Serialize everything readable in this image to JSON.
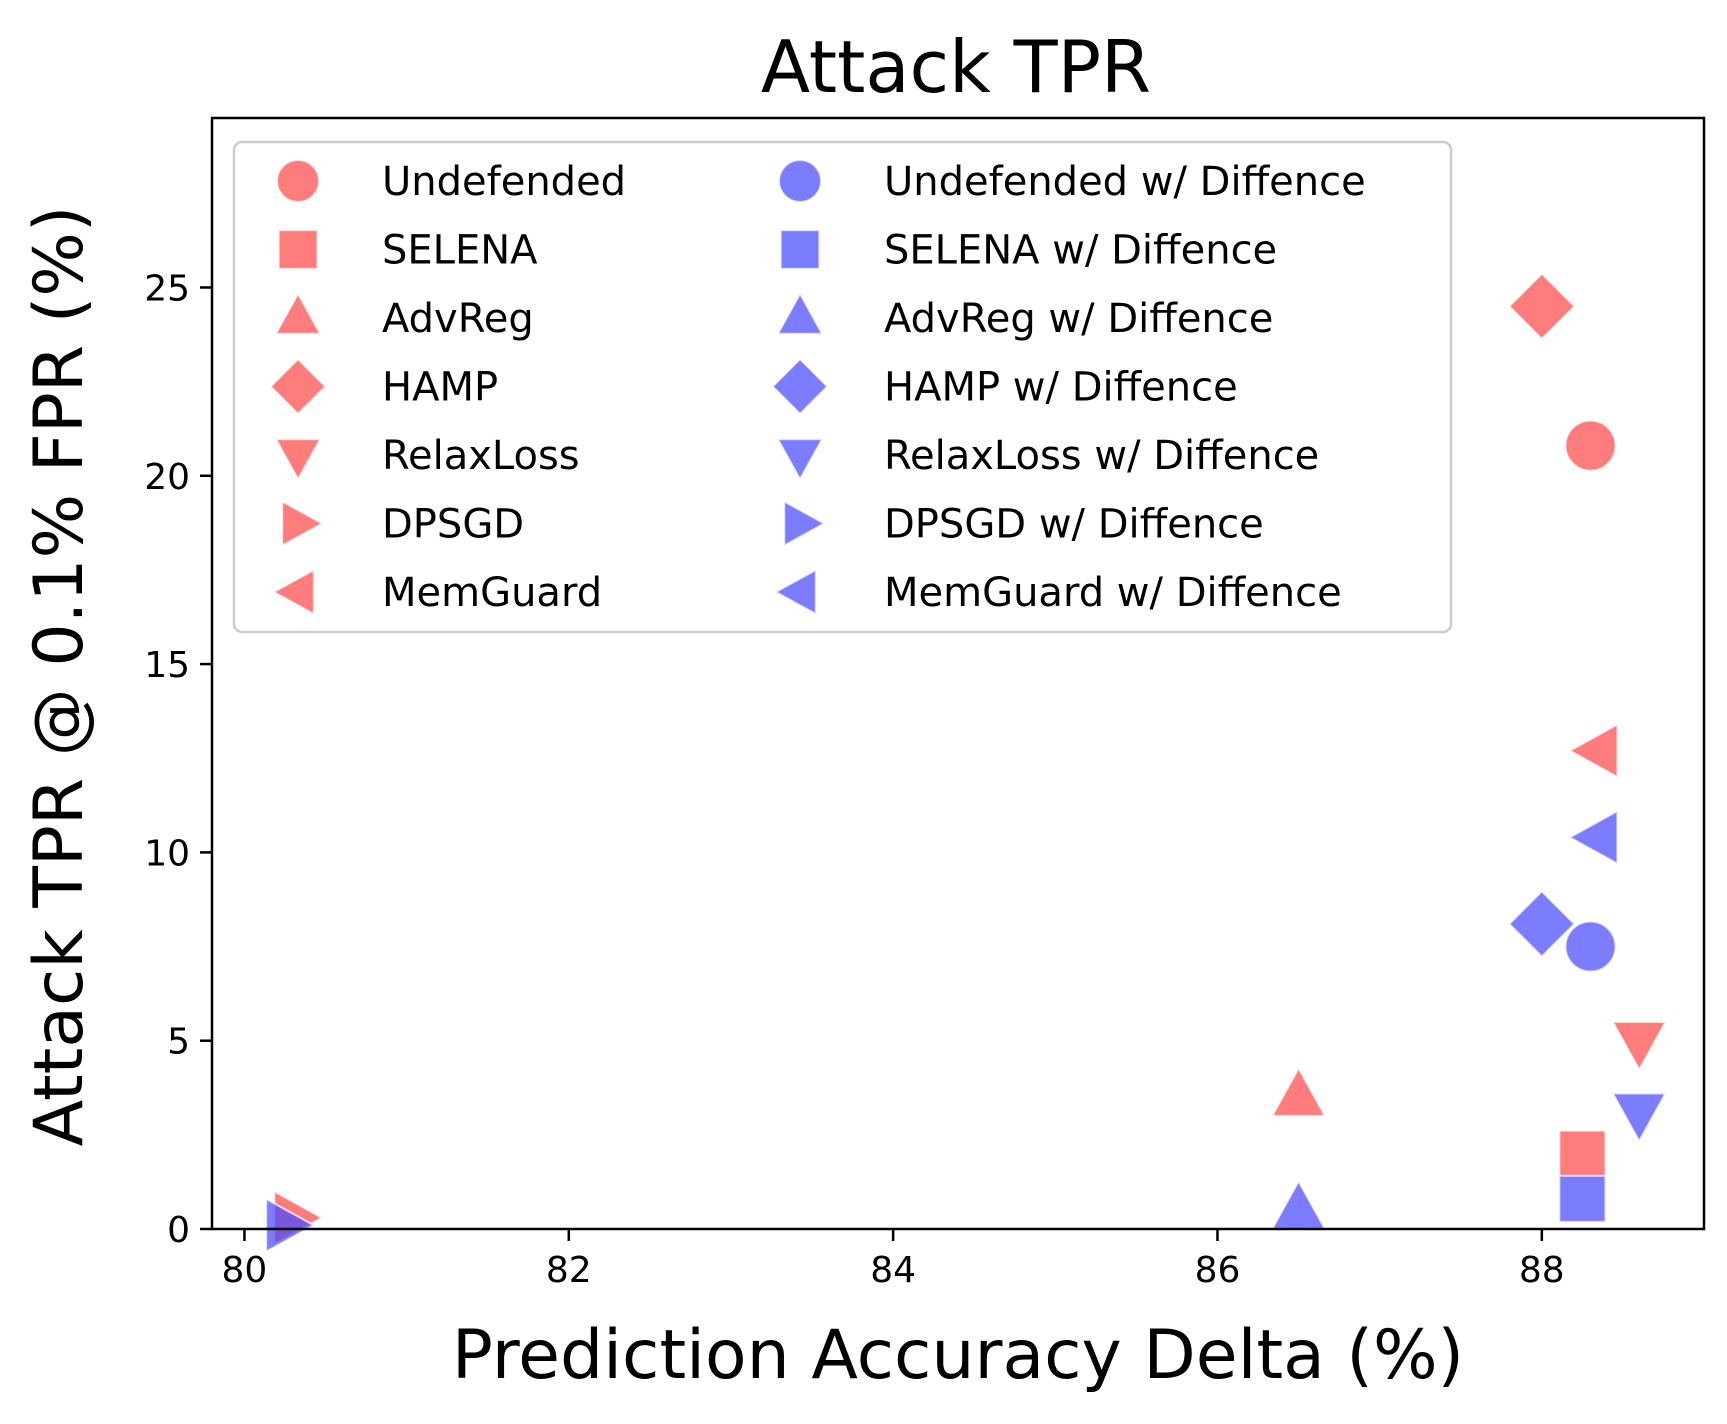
{
  "chart_data": {
    "type": "scatter",
    "title": "Attack TPR",
    "xlabel": "Prediction Accuracy Delta (%)",
    "ylabel": "Attack TPR @ 0.1% FPR (%)",
    "xlim": [
      79.8,
      89.0
    ],
    "ylim": [
      0,
      29.5
    ],
    "xticks": [
      {
        "value": 80,
        "label": "80"
      },
      {
        "value": 82,
        "label": "82"
      },
      {
        "value": 84,
        "label": "84"
      },
      {
        "value": 86,
        "label": "86"
      },
      {
        "value": 88,
        "label": "88"
      }
    ],
    "yticks": [
      {
        "value": 0,
        "label": "0"
      },
      {
        "value": 5,
        "label": "5"
      },
      {
        "value": 10,
        "label": "10"
      },
      {
        "value": 15,
        "label": "15"
      },
      {
        "value": 20,
        "label": "20"
      },
      {
        "value": 25,
        "label": "25"
      }
    ],
    "grid": false,
    "legend_position": "upper-left",
    "colors": {
      "undefended": "#ff4a4a",
      "defended": "#4a4aff"
    },
    "series": [
      {
        "name": "Undefended",
        "marker": "circle",
        "color": "#ff4a4a",
        "x": 88.3,
        "y": 20.8
      },
      {
        "name": "SELENA",
        "marker": "square",
        "color": "#ff4a4a",
        "x": 88.25,
        "y": 2.0
      },
      {
        "name": "AdvReg",
        "marker": "triangle-up",
        "color": "#ff4a4a",
        "x": 86.5,
        "y": 3.5
      },
      {
        "name": "HAMP",
        "marker": "diamond",
        "color": "#ff4a4a",
        "x": 88.0,
        "y": 24.5
      },
      {
        "name": "RelaxLoss",
        "marker": "triangle-down",
        "color": "#ff4a4a",
        "x": 88.6,
        "y": 5.0
      },
      {
        "name": "DPSGD",
        "marker": "triangle-right",
        "color": "#ff4a4a",
        "x": 80.3,
        "y": 0.3
      },
      {
        "name": "MemGuard",
        "marker": "triangle-left",
        "color": "#ff4a4a",
        "x": 88.35,
        "y": 12.7
      },
      {
        "name": "Undefended w/ Diffence",
        "marker": "circle",
        "color": "#4a4aff",
        "x": 88.3,
        "y": 7.5
      },
      {
        "name": "SELENA w/ Diffence",
        "marker": "square",
        "color": "#4a4aff",
        "x": 88.25,
        "y": 0.8
      },
      {
        "name": "AdvReg w/ Diffence",
        "marker": "triangle-up",
        "color": "#4a4aff",
        "x": 86.5,
        "y": 0.5
      },
      {
        "name": "HAMP w/ Diffence",
        "marker": "diamond",
        "color": "#4a4aff",
        "x": 88.0,
        "y": 8.1
      },
      {
        "name": "RelaxLoss w/ Diffence",
        "marker": "triangle-down",
        "color": "#4a4aff",
        "x": 88.6,
        "y": 3.1
      },
      {
        "name": "DPSGD w/ Diffence",
        "marker": "triangle-right",
        "color": "#4a4aff",
        "x": 80.25,
        "y": 0.1
      },
      {
        "name": "MemGuard w/ Diffence",
        "marker": "triangle-left",
        "color": "#4a4aff",
        "x": 88.35,
        "y": 10.4
      }
    ]
  }
}
